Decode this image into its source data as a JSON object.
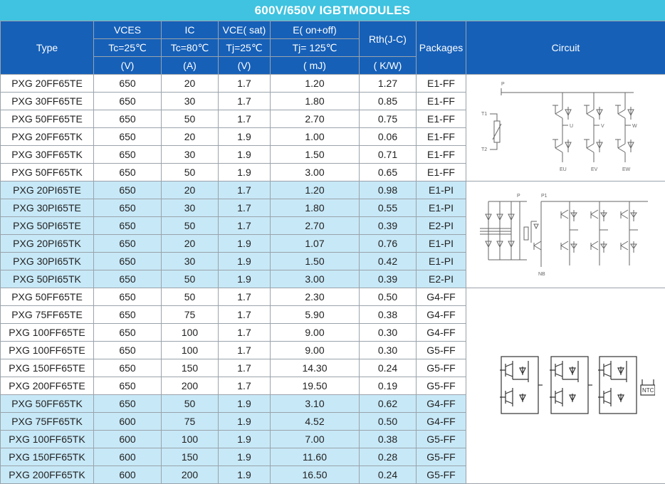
{
  "title": "600V/650V  IGBTMODULES",
  "headers": {
    "type": "Type",
    "vces": "VCES",
    "vces_cond": "Tc=25℃",
    "vces_unit": "(V)",
    "ic": "IC",
    "ic_cond": "Tc=80℃",
    "ic_unit": "(A)",
    "vce": "VCE( sat)",
    "vce_cond": "Tj=25℃",
    "vce_unit": "(V)",
    "e": "E( on+off)",
    "e_cond": "Tj= 125℃",
    "e_unit": "( mJ)",
    "rth": "Rth(J-C)",
    "rth_unit": "( K/W)",
    "packages": "Packages",
    "circuit": "Circuit"
  },
  "rows": [
    {
      "type": "PXG 20FF65TE",
      "vces": "650",
      "ic": "20",
      "vce": "1.7",
      "e": "1.20",
      "rth": "1.27",
      "pkg": "E1-FF"
    },
    {
      "type": "PXG 30FF65TE",
      "vces": "650",
      "ic": "30",
      "vce": "1.7",
      "e": "1.80",
      "rth": "0.85",
      "pkg": "E1-FF"
    },
    {
      "type": "PXG 50FF65TE",
      "vces": "650",
      "ic": "50",
      "vce": "1.7",
      "e": "2.70",
      "rth": "0.75",
      "pkg": "E1-FF"
    },
    {
      "type": "PXG 20FF65TK",
      "vces": "650",
      "ic": "20",
      "vce": "1.9",
      "e": "1.00",
      "rth": "0.06",
      "pkg": "E1-FF"
    },
    {
      "type": "PXG 30FF65TK",
      "vces": "650",
      "ic": "30",
      "vce": "1.9",
      "e": "1.50",
      "rth": "0.71",
      "pkg": "E1-FF"
    },
    {
      "type": "PXG 50FF65TK",
      "vces": "650",
      "ic": "50",
      "vce": "1.9",
      "e": "3.00",
      "rth": "0.65",
      "pkg": "E1-FF"
    },
    {
      "type": "PXG 20PI65TE",
      "vces": "650",
      "ic": "20",
      "vce": "1.7",
      "e": "1.20",
      "rth": "0.98",
      "pkg": "E1-PI"
    },
    {
      "type": "PXG 30PI65TE",
      "vces": "650",
      "ic": "30",
      "vce": "1.7",
      "e": "1.80",
      "rth": "0.55",
      "pkg": "E1-PI"
    },
    {
      "type": "PXG 50PI65TE",
      "vces": "650",
      "ic": "50",
      "vce": "1.7",
      "e": "2.70",
      "rth": "0.39",
      "pkg": "E2-PI"
    },
    {
      "type": "PXG 20PI65TK",
      "vces": "650",
      "ic": "20",
      "vce": "1.9",
      "e": "1.07",
      "rth": "0.76",
      "pkg": "E1-PI"
    },
    {
      "type": "PXG 30PI65TK",
      "vces": "650",
      "ic": "30",
      "vce": "1.9",
      "e": "1.50",
      "rth": "0.42",
      "pkg": "E1-PI"
    },
    {
      "type": "PXG 50PI65TK",
      "vces": "650",
      "ic": "50",
      "vce": "1.9",
      "e": "3.00",
      "rth": "0.39",
      "pkg": "E2-PI"
    },
    {
      "type": "PXG 50FF65TE",
      "vces": "650",
      "ic": "50",
      "vce": "1.7",
      "e": "2.30",
      "rth": "0.50",
      "pkg": "G4-FF"
    },
    {
      "type": "PXG 75FF65TE",
      "vces": "650",
      "ic": "75",
      "vce": "1.7",
      "e": "5.90",
      "rth": "0.38",
      "pkg": "G4-FF"
    },
    {
      "type": "PXG 100FF65TE",
      "vces": "650",
      "ic": "100",
      "vce": "1.7",
      "e": "9.00",
      "rth": "0.30",
      "pkg": "G4-FF"
    },
    {
      "type": "PXG 100FF65TE",
      "vces": "650",
      "ic": "100",
      "vce": "1.7",
      "e": "9.00",
      "rth": "0.30",
      "pkg": "G5-FF"
    },
    {
      "type": "PXG 150FF65TE",
      "vces": "650",
      "ic": "150",
      "vce": "1.7",
      "e": "14.30",
      "rth": "0.24",
      "pkg": "G5-FF"
    },
    {
      "type": "PXG 200FF65TE",
      "vces": "650",
      "ic": "200",
      "vce": "1.7",
      "e": "19.50",
      "rth": "0.19",
      "pkg": "G5-FF"
    },
    {
      "type": "PXG 50FF65TK",
      "vces": "650",
      "ic": "50",
      "vce": "1.9",
      "e": "3.10",
      "rth": "0.62",
      "pkg": "G4-FF"
    },
    {
      "type": "PXG 75FF65TK",
      "vces": "600",
      "ic": "75",
      "vce": "1.9",
      "e": "4.52",
      "rth": "0.50",
      "pkg": "G4-FF"
    },
    {
      "type": "PXG 100FF65TK",
      "vces": "600",
      "ic": "100",
      "vce": "1.9",
      "e": "7.00",
      "rth": "0.38",
      "pkg": "G5-FF"
    },
    {
      "type": "PXG 150FF65TK",
      "vces": "600",
      "ic": "150",
      "vce": "1.9",
      "e": "11.60",
      "rth": "0.28",
      "pkg": "G5-FF"
    },
    {
      "type": "PXG 200FF65TK",
      "vces": "600",
      "ic": "200",
      "vce": "1.9",
      "e": "16.50",
      "rth": "0.24",
      "pkg": "G5-FF"
    }
  ],
  "circuits": {
    "ff_small": {
      "p": "P",
      "t1": "T1",
      "t2": "T2",
      "u": "U",
      "v": "V",
      "w": "W",
      "eu": "EU",
      "ev": "EV",
      "ew": "EW"
    },
    "pi": {
      "p": "P",
      "p1": "P1",
      "nb": "NB"
    },
    "ff_large": {
      "ntc": "NTC"
    }
  },
  "colors": {
    "title_bg": "#3fc3e0",
    "header_bg": "#1660b8",
    "band_blue": "#c7e8f7"
  }
}
